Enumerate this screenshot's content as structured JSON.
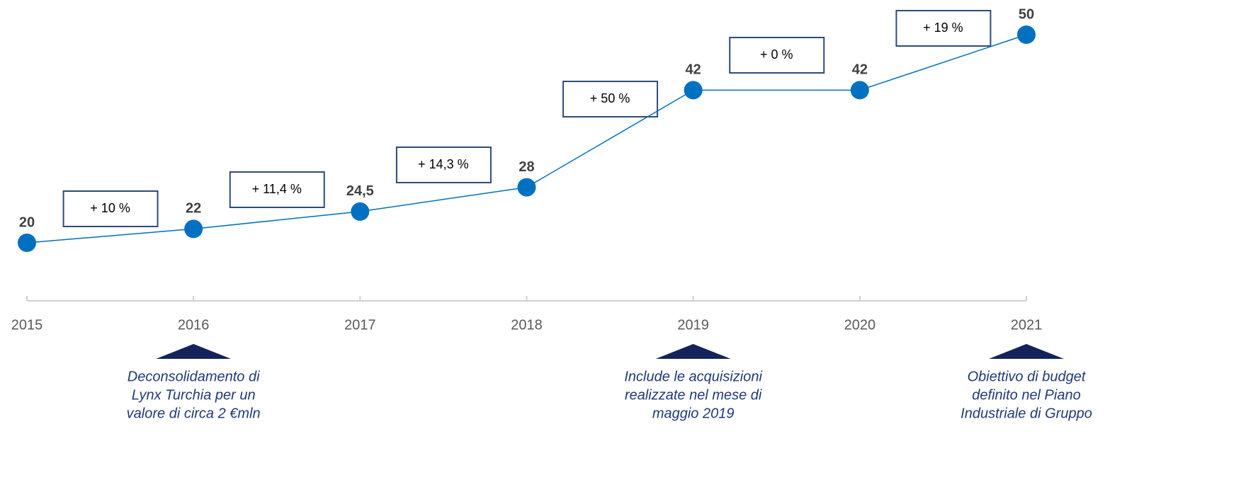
{
  "chart_data": {
    "type": "line",
    "categories": [
      "2015",
      "2016",
      "2017",
      "2018",
      "2019",
      "2020",
      "2021"
    ],
    "series": [
      {
        "color": "#0070c0",
        "values": [
          20,
          22,
          24.5,
          28,
          42,
          42,
          50
        ],
        "value_labels": [
          "20",
          "22",
          "24,5",
          "28",
          "42",
          "42",
          "50"
        ]
      }
    ],
    "growth_labels": [
      "+ 10 %",
      "+ 11,4 %",
      "+ 14,3 %",
      "+ 50 %",
      "+ 0 %",
      "+ 19 %"
    ],
    "notes": [
      null,
      [
        "Deconsolidamento di",
        "Lynx Turchia per un",
        "valore di circa 2 €mln"
      ],
      null,
      null,
      [
        "Include le acquisizioni",
        "realizzate nel mese di",
        "maggio 2019"
      ],
      null,
      [
        "Obiettivo di budget",
        "definito nel Piano",
        "Industriale di Gruppo"
      ]
    ],
    "ylim": [
      0,
      55
    ]
  }
}
